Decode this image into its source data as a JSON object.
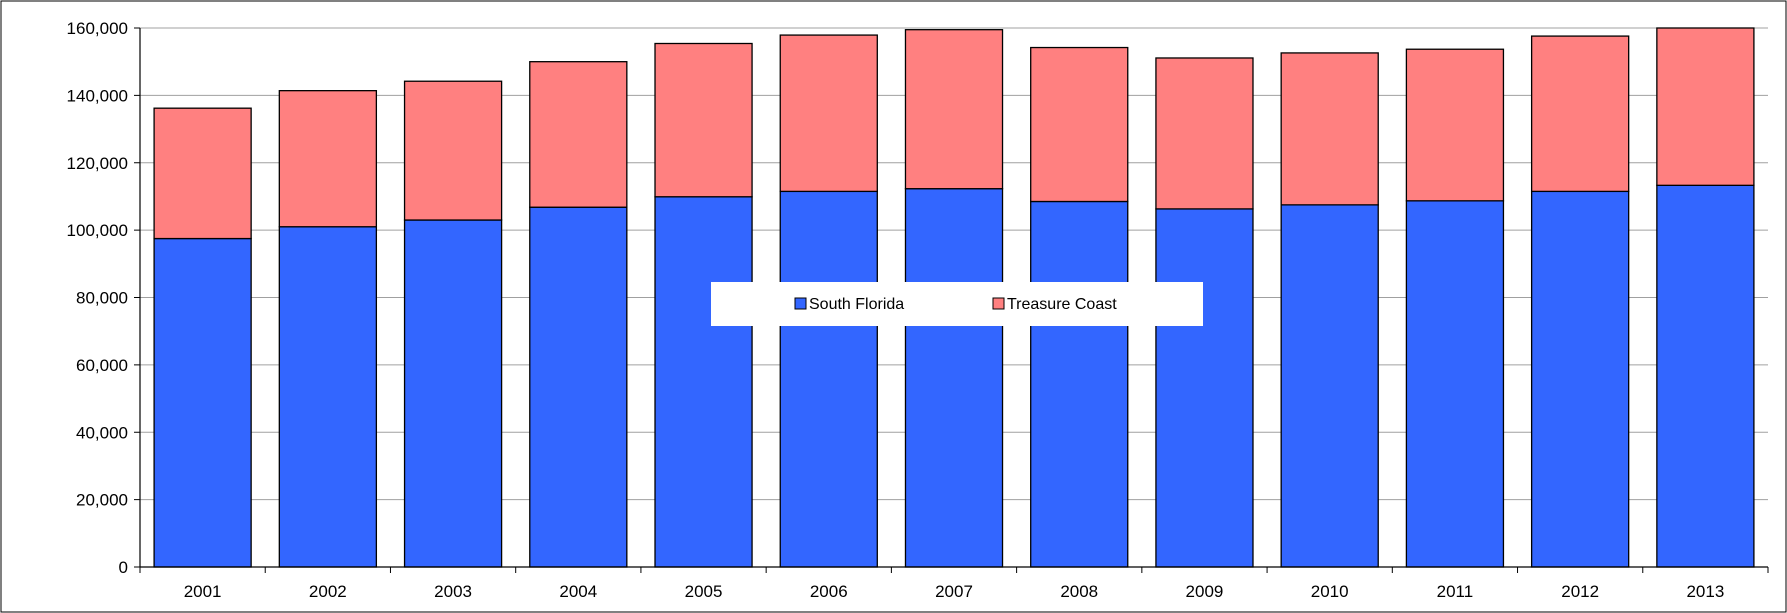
{
  "chart_data": {
    "type": "bar",
    "stacked": true,
    "categories": [
      "2001",
      "2002",
      "2003",
      "2004",
      "2005",
      "2006",
      "2007",
      "2008",
      "2009",
      "2010",
      "2011",
      "2012",
      "2013"
    ],
    "series": [
      {
        "name": "South Florida",
        "color": "#3366ff",
        "values": [
          97500,
          101000,
          103000,
          106800,
          109900,
          111500,
          112300,
          108500,
          106300,
          107500,
          108700,
          111500,
          113300
        ]
      },
      {
        "name": "Treasure Coast",
        "color": "#ff8080",
        "values": [
          38700,
          40400,
          41200,
          43200,
          45500,
          46400,
          47200,
          45700,
          44800,
          45100,
          45000,
          46100,
          46700
        ]
      }
    ],
    "title": "",
    "xlabel": "",
    "ylabel": "",
    "ylim": [
      0,
      160000
    ],
    "yticks": [
      0,
      20000,
      40000,
      60000,
      80000,
      100000,
      120000,
      140000,
      160000
    ],
    "ytick_labels": [
      "0",
      "20,000",
      "40,000",
      "60,000",
      "80,000",
      "100,000",
      "120,000",
      "140,000",
      "160,000"
    ],
    "grid": "horizontal",
    "legend_position": "center"
  }
}
